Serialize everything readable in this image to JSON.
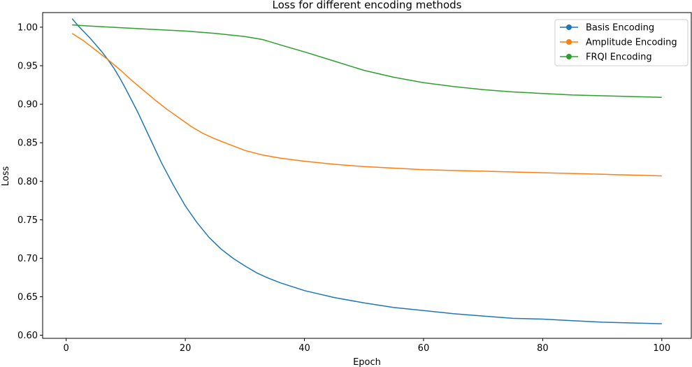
{
  "chart_data": {
    "type": "line",
    "title": "Loss for different encoding methods",
    "xlabel": "Epoch",
    "ylabel": "Loss",
    "xlim": [
      -3.95,
      104.95
    ],
    "ylim": [
      0.596,
      1.019
    ],
    "xticks": [
      0,
      20,
      40,
      60,
      80,
      100
    ],
    "xtick_labels": [
      "0",
      "20",
      "40",
      "60",
      "80",
      "100"
    ],
    "yticks": [
      0.6,
      0.65,
      0.7,
      0.75,
      0.8,
      0.85,
      0.9,
      0.95,
      1.0
    ],
    "ytick_labels": [
      "0.60",
      "0.65",
      "0.70",
      "0.75",
      "0.80",
      "0.85",
      "0.90",
      "0.95",
      "1.00"
    ],
    "grid": false,
    "legend_position": "top-right",
    "series": [
      {
        "name": "Basis Encoding",
        "color": "#1f77b4",
        "x": [
          1,
          2,
          3,
          4,
          5,
          6,
          7,
          8,
          9,
          10,
          12,
          14,
          16,
          18,
          20,
          22,
          24,
          26,
          28,
          30,
          32,
          34,
          36,
          38,
          40,
          45,
          50,
          55,
          60,
          65,
          70,
          75,
          80,
          85,
          90,
          95,
          100
        ],
        "y": [
          1.011,
          1.002,
          0.994,
          0.986,
          0.977,
          0.968,
          0.958,
          0.947,
          0.934,
          0.92,
          0.89,
          0.857,
          0.824,
          0.795,
          0.768,
          0.746,
          0.727,
          0.712,
          0.7,
          0.69,
          0.681,
          0.674,
          0.668,
          0.663,
          0.658,
          0.649,
          0.642,
          0.636,
          0.632,
          0.628,
          0.625,
          0.622,
          0.621,
          0.619,
          0.617,
          0.616,
          0.615
        ]
      },
      {
        "name": "Amplitude Encoding",
        "color": "#ff7f0e",
        "x": [
          1,
          3,
          5,
          7,
          9,
          11,
          13,
          15,
          17,
          19,
          21,
          23,
          25,
          27,
          30,
          33,
          36,
          40,
          45,
          50,
          55,
          60,
          70,
          80,
          90,
          100
        ],
        "y": [
          0.992,
          0.982,
          0.97,
          0.958,
          0.945,
          0.931,
          0.918,
          0.905,
          0.893,
          0.882,
          0.871,
          0.862,
          0.855,
          0.849,
          0.84,
          0.834,
          0.83,
          0.826,
          0.822,
          0.819,
          0.817,
          0.815,
          0.813,
          0.811,
          0.809,
          0.807
        ]
      },
      {
        "name": "FRQI Encoding",
        "color": "#2ca02c",
        "x": [
          1,
          5,
          10,
          15,
          20,
          25,
          30,
          33,
          36,
          40,
          45,
          50,
          55,
          60,
          65,
          70,
          75,
          80,
          85,
          90,
          95,
          100
        ],
        "y": [
          1.003,
          1.001,
          0.999,
          0.997,
          0.995,
          0.992,
          0.988,
          0.984,
          0.977,
          0.968,
          0.956,
          0.944,
          0.935,
          0.928,
          0.923,
          0.919,
          0.916,
          0.914,
          0.912,
          0.911,
          0.91,
          0.909
        ]
      }
    ]
  }
}
